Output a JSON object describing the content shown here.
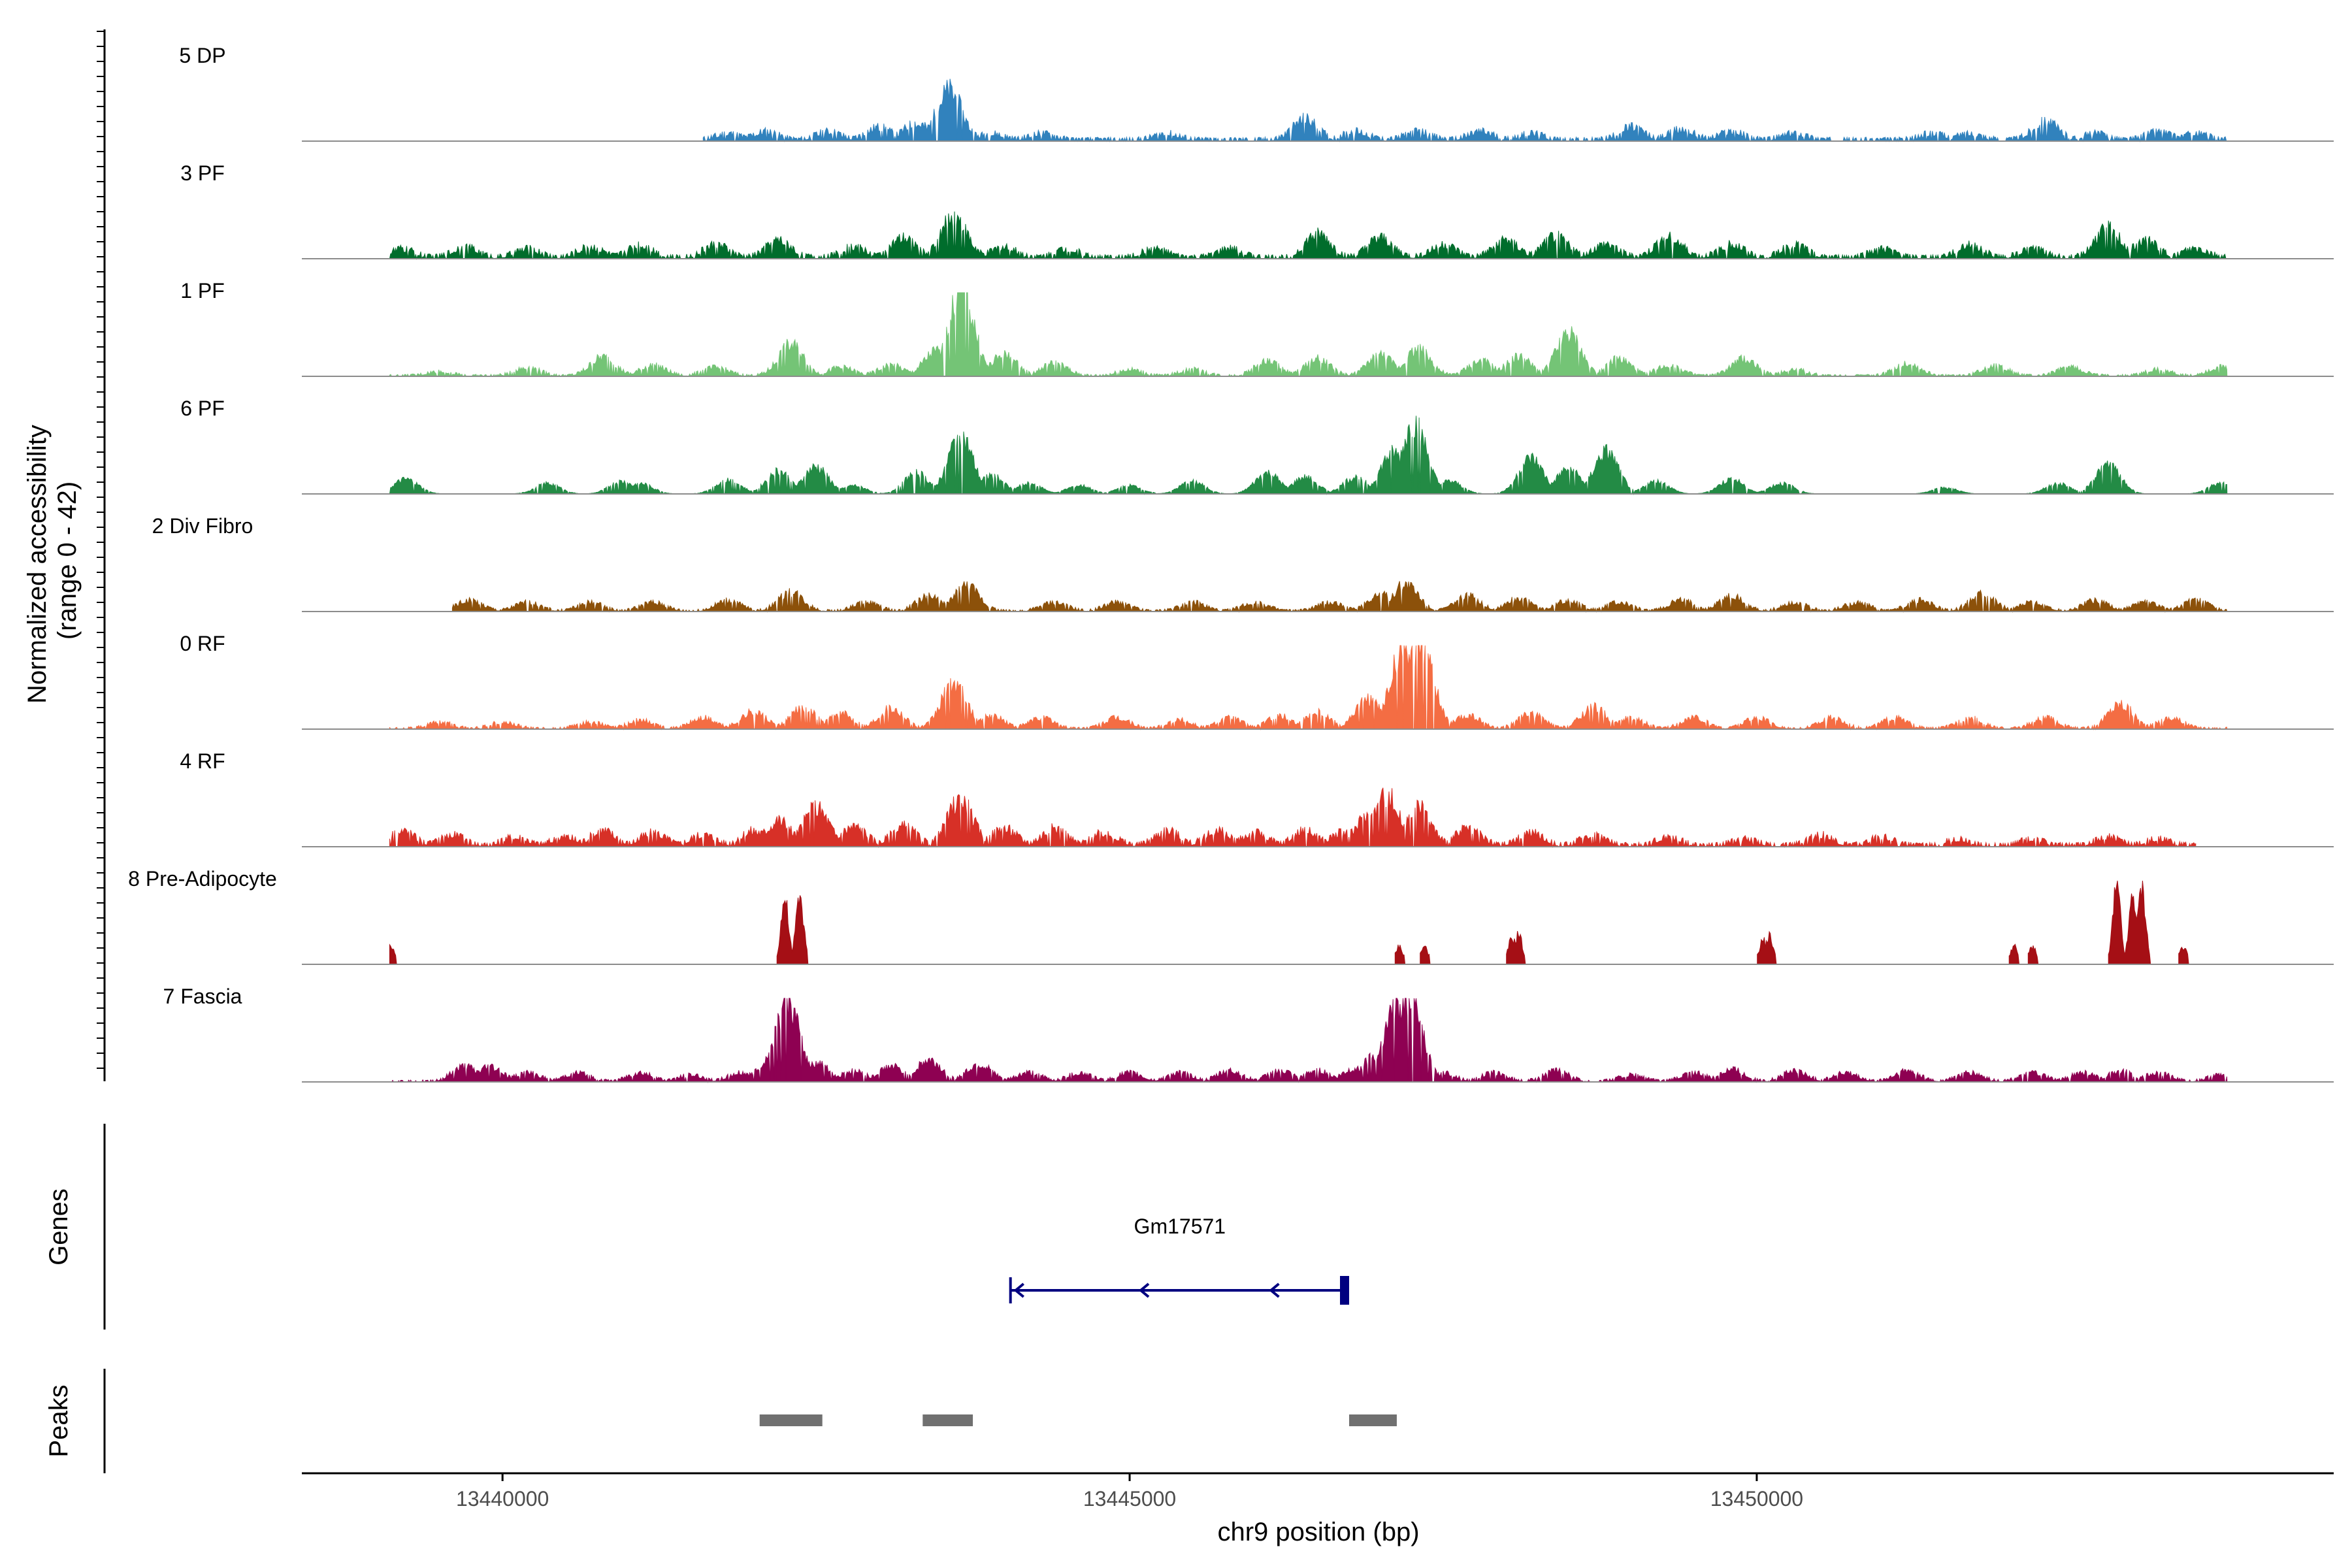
{
  "chart_data": {
    "type": "area",
    "y_axis_title_line1": "Normalized accessibility",
    "y_axis_title_line2": "(range 0 - 42)",
    "y_range": [
      0,
      42
    ],
    "x_axis_title": "chr9 position (bp)",
    "x_range": [
      13438400,
      13454600
    ],
    "x_ticks": [
      13440000,
      13445000,
      13450000
    ],
    "x_tick_labels": [
      "13440000",
      "13445000",
      "13450000"
    ],
    "series": [
      {
        "name": "5 DP",
        "color": "#3182BD",
        "start": 13441600,
        "end": 13453750,
        "baseline": 2,
        "peaks": [
          [
            13441800,
            3
          ],
          [
            13442100,
            4
          ],
          [
            13442600,
            4
          ],
          [
            13443000,
            6
          ],
          [
            13443300,
            8
          ],
          [
            13443560,
            24
          ],
          [
            13443900,
            3
          ],
          [
            13444300,
            3
          ],
          [
            13445300,
            3
          ],
          [
            13446400,
            10
          ],
          [
            13446800,
            4
          ],
          [
            13447300,
            4
          ],
          [
            13447800,
            4
          ],
          [
            13448200,
            3
          ],
          [
            13449000,
            6
          ],
          [
            13449400,
            5
          ],
          [
            13449800,
            4
          ],
          [
            13450300,
            3
          ],
          [
            13451400,
            3
          ],
          [
            13451700,
            3
          ],
          [
            13452300,
            9
          ],
          [
            13452700,
            3
          ],
          [
            13453200,
            4
          ],
          [
            13453500,
            3
          ]
        ]
      },
      {
        "name": "3 PF",
        "color": "#006D2C",
        "start": 13439100,
        "end": 13453750,
        "baseline": 2,
        "peaks": [
          [
            13439200,
            4
          ],
          [
            13439700,
            5
          ],
          [
            13440200,
            4
          ],
          [
            13440700,
            5
          ],
          [
            13441100,
            6
          ],
          [
            13441700,
            6
          ],
          [
            13442200,
            8
          ],
          [
            13442800,
            5
          ],
          [
            13443200,
            9
          ],
          [
            13443600,
            20
          ],
          [
            13444000,
            5
          ],
          [
            13444500,
            4
          ],
          [
            13445200,
            4
          ],
          [
            13445800,
            4
          ],
          [
            13446500,
            11
          ],
          [
            13447000,
            9
          ],
          [
            13447500,
            6
          ],
          [
            13448000,
            8
          ],
          [
            13448400,
            10
          ],
          [
            13448800,
            6
          ],
          [
            13449300,
            10
          ],
          [
            13449800,
            6
          ],
          [
            13450300,
            6
          ],
          [
            13451000,
            4
          ],
          [
            13451700,
            6
          ],
          [
            13452200,
            4
          ],
          [
            13452800,
            14
          ],
          [
            13453100,
            8
          ],
          [
            13453500,
            4
          ]
        ]
      },
      {
        "name": "1 PF",
        "color": "#74C476",
        "start": 13439100,
        "end": 13453750,
        "baseline": 1,
        "peaks": [
          [
            13439500,
            2
          ],
          [
            13440200,
            4
          ],
          [
            13440800,
            9
          ],
          [
            13441200,
            5
          ],
          [
            13441700,
            4
          ],
          [
            13442300,
            15
          ],
          [
            13442700,
            4
          ],
          [
            13443100,
            5
          ],
          [
            13443460,
            12
          ],
          [
            13443660,
            42
          ],
          [
            13444000,
            10
          ],
          [
            13444400,
            6
          ],
          [
            13445000,
            3
          ],
          [
            13445500,
            3
          ],
          [
            13446100,
            7
          ],
          [
            13446500,
            8
          ],
          [
            13447000,
            10
          ],
          [
            13447300,
            13
          ],
          [
            13447800,
            7
          ],
          [
            13448100,
            9
          ],
          [
            13448500,
            20
          ],
          [
            13448900,
            8
          ],
          [
            13449300,
            5
          ],
          [
            13449900,
            8
          ],
          [
            13450300,
            3
          ],
          [
            13451200,
            6
          ],
          [
            13451900,
            5
          ],
          [
            13452500,
            4
          ],
          [
            13453200,
            3
          ],
          [
            13453700,
            4
          ]
        ]
      },
      {
        "name": "6 PF",
        "color": "#238B45",
        "start": 13439100,
        "end": 13453750,
        "baseline": 0,
        "peaks": [
          [
            13439230,
            7
          ],
          [
            13440360,
            5
          ],
          [
            13440950,
            6
          ],
          [
            13441100,
            5
          ],
          [
            13441800,
            7
          ],
          [
            13442200,
            11
          ],
          [
            13442500,
            13
          ],
          [
            13442800,
            4
          ],
          [
            13443300,
            10
          ],
          [
            13443650,
            28
          ],
          [
            13443900,
            9
          ],
          [
            13444200,
            5
          ],
          [
            13444600,
            4
          ],
          [
            13445000,
            4
          ],
          [
            13445500,
            6
          ],
          [
            13446100,
            10
          ],
          [
            13446400,
            8
          ],
          [
            13446800,
            8
          ],
          [
            13447100,
            20
          ],
          [
            13447270,
            34
          ],
          [
            13447550,
            6
          ],
          [
            13448200,
            17
          ],
          [
            13448500,
            12
          ],
          [
            13448800,
            20
          ],
          [
            13449200,
            6
          ],
          [
            13449800,
            7
          ],
          [
            13450200,
            5
          ],
          [
            13451500,
            3
          ],
          [
            13452400,
            5
          ],
          [
            13452800,
            14
          ],
          [
            13453700,
            5
          ]
        ]
      },
      {
        "name": "2 Div Fibro",
        "color": "#8C510A",
        "start": 13439600,
        "end": 13453750,
        "baseline": 1,
        "peaks": [
          [
            13439740,
            5
          ],
          [
            13440200,
            4
          ],
          [
            13440700,
            4
          ],
          [
            13441200,
            4
          ],
          [
            13441800,
            5
          ],
          [
            13442300,
            9
          ],
          [
            13442900,
            4
          ],
          [
            13443400,
            7
          ],
          [
            13443700,
            12
          ],
          [
            13444400,
            4
          ],
          [
            13444900,
            4
          ],
          [
            13445500,
            4
          ],
          [
            13446000,
            4
          ],
          [
            13446600,
            4
          ],
          [
            13447000,
            8
          ],
          [
            13447200,
            13
          ],
          [
            13447700,
            7
          ],
          [
            13448100,
            6
          ],
          [
            13448500,
            5
          ],
          [
            13448900,
            4
          ],
          [
            13449400,
            5
          ],
          [
            13449800,
            7
          ],
          [
            13450300,
            4
          ],
          [
            13450800,
            4
          ],
          [
            13451300,
            5
          ],
          [
            13451800,
            9
          ],
          [
            13452200,
            4
          ],
          [
            13452700,
            5
          ],
          [
            13453100,
            4
          ],
          [
            13453500,
            5
          ]
        ]
      },
      {
        "name": "0 RF",
        "color": "#F46D43",
        "start": 13439100,
        "end": 13453750,
        "baseline": 1,
        "peaks": [
          [
            13439500,
            3
          ],
          [
            13440000,
            3
          ],
          [
            13440700,
            3
          ],
          [
            13441100,
            4
          ],
          [
            13441600,
            5
          ],
          [
            13442000,
            8
          ],
          [
            13442400,
            10
          ],
          [
            13442700,
            7
          ],
          [
            13443100,
            10
          ],
          [
            13443600,
            22
          ],
          [
            13443900,
            6
          ],
          [
            13444300,
            5
          ],
          [
            13444900,
            5
          ],
          [
            13445400,
            4
          ],
          [
            13445800,
            5
          ],
          [
            13446200,
            6
          ],
          [
            13446500,
            8
          ],
          [
            13446900,
            14
          ],
          [
            13447180,
            38
          ],
          [
            13447320,
            42
          ],
          [
            13447700,
            6
          ],
          [
            13448200,
            7
          ],
          [
            13448700,
            10
          ],
          [
            13449000,
            5
          ],
          [
            13449500,
            5
          ],
          [
            13450000,
            5
          ],
          [
            13450600,
            5
          ],
          [
            13451100,
            5
          ],
          [
            13451700,
            5
          ],
          [
            13452300,
            5
          ],
          [
            13452900,
            12
          ],
          [
            13453300,
            5
          ]
        ]
      },
      {
        "name": "4 RF",
        "color": "#D73027",
        "start": 13439100,
        "end": 13453500,
        "baseline": 2,
        "peaks": [
          [
            13439200,
            7
          ],
          [
            13439600,
            5
          ],
          [
            13440100,
            4
          ],
          [
            13440500,
            4
          ],
          [
            13440800,
            7
          ],
          [
            13441200,
            6
          ],
          [
            13441600,
            5
          ],
          [
            13442000,
            7
          ],
          [
            13442200,
            12
          ],
          [
            13442500,
            18
          ],
          [
            13442800,
            9
          ],
          [
            13443200,
            9
          ],
          [
            13443650,
            22
          ],
          [
            13444000,
            8
          ],
          [
            13444400,
            8
          ],
          [
            13444800,
            6
          ],
          [
            13445300,
            7
          ],
          [
            13445700,
            7
          ],
          [
            13446000,
            6
          ],
          [
            13446400,
            7
          ],
          [
            13446700,
            6
          ],
          [
            13446900,
            14
          ],
          [
            13447050,
            24
          ],
          [
            13447300,
            18
          ],
          [
            13447700,
            8
          ],
          [
            13448200,
            6
          ],
          [
            13448700,
            5
          ],
          [
            13449300,
            4
          ],
          [
            13449900,
            3
          ],
          [
            13450500,
            5
          ],
          [
            13451000,
            4
          ],
          [
            13451600,
            3
          ],
          [
            13452200,
            3
          ],
          [
            13452800,
            4
          ],
          [
            13453200,
            3
          ]
        ]
      },
      {
        "name": "8 Pre-Adipocyte",
        "color": "#A50F15",
        "start": 13439100,
        "end": 13453750,
        "baseline": 0,
        "segmented": true,
        "peaks": [
          [
            13439110,
            9
          ],
          [
            13442250,
            32
          ],
          [
            13442370,
            34
          ],
          [
            13447150,
            9
          ],
          [
            13447350,
            9
          ],
          [
            13448050,
            13
          ],
          [
            13448100,
            15
          ],
          [
            13450050,
            12
          ],
          [
            13450100,
            14
          ],
          [
            13452050,
            9
          ],
          [
            13452200,
            9
          ],
          [
            13452870,
            38
          ],
          [
            13453000,
            34
          ],
          [
            13453070,
            38
          ],
          [
            13453400,
            9
          ]
        ]
      },
      {
        "name": "7 Fascia",
        "color": "#8E0152",
        "start": 13439100,
        "end": 13453750,
        "baseline": 1,
        "peaks": [
          [
            13439700,
            7
          ],
          [
            13439900,
            7
          ],
          [
            13440200,
            4
          ],
          [
            13440600,
            4
          ],
          [
            13441100,
            4
          ],
          [
            13441500,
            3
          ],
          [
            13441900,
            4
          ],
          [
            13442150,
            12
          ],
          [
            13442270,
            38
          ],
          [
            13442500,
            9
          ],
          [
            13442800,
            5
          ],
          [
            13443100,
            7
          ],
          [
            13443400,
            10
          ],
          [
            13443800,
            8
          ],
          [
            13444200,
            4
          ],
          [
            13444600,
            4
          ],
          [
            13445000,
            4
          ],
          [
            13445400,
            4
          ],
          [
            13445800,
            5
          ],
          [
            13446200,
            5
          ],
          [
            13446500,
            5
          ],
          [
            13446800,
            6
          ],
          [
            13446950,
            12
          ],
          [
            13447120,
            36
          ],
          [
            13447230,
            42
          ],
          [
            13447500,
            4
          ],
          [
            13447900,
            4
          ],
          [
            13448400,
            5
          ],
          [
            13449000,
            3
          ],
          [
            13449500,
            4
          ],
          [
            13449800,
            6
          ],
          [
            13450300,
            5
          ],
          [
            13450700,
            4
          ],
          [
            13451200,
            5
          ],
          [
            13451700,
            4
          ],
          [
            13452200,
            4
          ],
          [
            13452600,
            4
          ],
          [
            13452900,
            5
          ],
          [
            13453200,
            4
          ],
          [
            13453700,
            3
          ]
        ]
      }
    ],
    "genes": {
      "title": "Genes",
      "items": [
        {
          "name": "Gm17571",
          "start": 13444050,
          "end": 13446750,
          "strand": "-",
          "color": "#000080"
        }
      ]
    },
    "peaks_track": {
      "title": "Peaks",
      "color": "#707070",
      "regions": [
        [
          13442050,
          13442550
        ],
        [
          13443350,
          13443750
        ],
        [
          13446750,
          13447130
        ]
      ]
    }
  }
}
